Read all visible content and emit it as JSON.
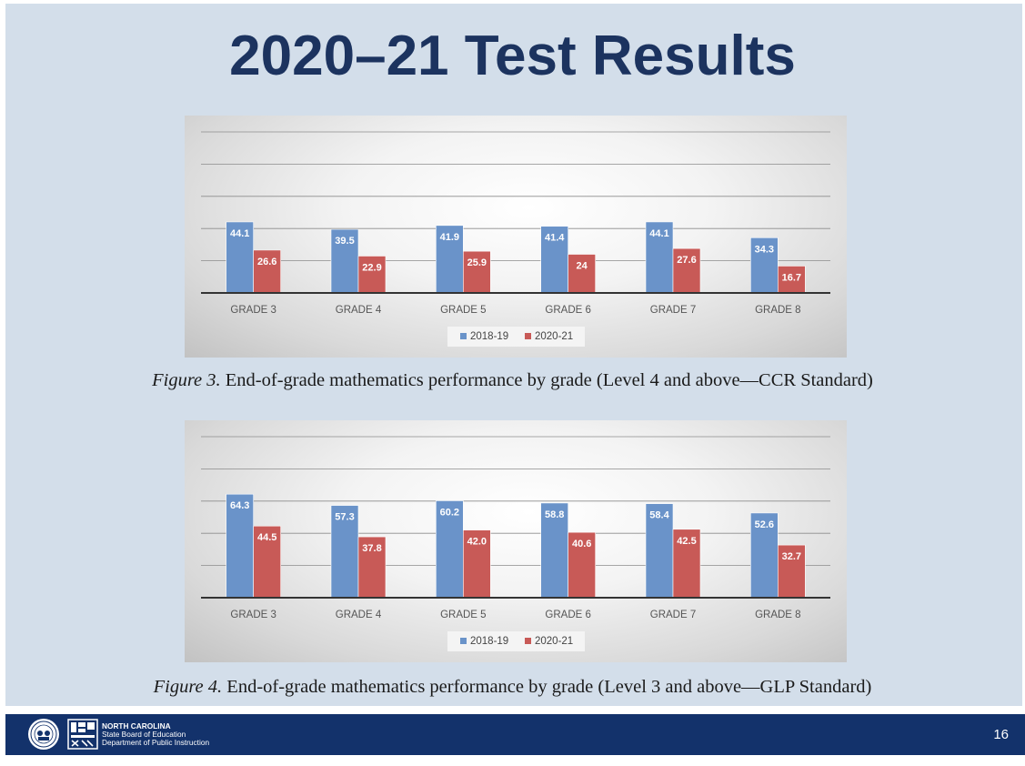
{
  "slide": {
    "title": "2020–21 Test Results",
    "page_number": "16"
  },
  "footer": {
    "org_line1": "NORTH CAROLINA",
    "org_line2": "State Board of Education",
    "org_line3": "Department of Public Instruction"
  },
  "captions": [
    {
      "figure_label": "Figure 3.",
      "text": " End-of-grade mathematics performance by grade (Level 4 and above—CCR Standard)"
    },
    {
      "figure_label": "Figure 4.",
      "text": " End-of-grade mathematics performance by grade (Level 3 and above—GLP Standard)"
    }
  ],
  "colors": {
    "series_2018": "#6a93c9",
    "series_2021": "#c85a57",
    "title": "#1c335f",
    "footer": "#13326b"
  },
  "chart_data": [
    {
      "type": "bar",
      "categories": [
        "GRADE 3",
        "GRADE 4",
        "GRADE 5",
        "GRADE 6",
        "GRADE 7",
        "GRADE 8"
      ],
      "series": [
        {
          "name": "2018-19",
          "values": [
            44.1,
            39.5,
            41.9,
            41.4,
            44.1,
            34.3
          ],
          "labels": [
            "44.1",
            "39.5",
            "41.9",
            "41.4",
            "44.1",
            "34.3"
          ]
        },
        {
          "name": "2020-21",
          "values": [
            26.6,
            22.9,
            25.9,
            24,
            27.6,
            16.7
          ],
          "labels": [
            "26.6",
            "22.9",
            "25.9",
            "24",
            "27.6",
            "16.7"
          ]
        }
      ],
      "ylim": [
        0,
        100
      ],
      "grid": true,
      "legend": "bottom"
    },
    {
      "type": "bar",
      "categories": [
        "GRADE 3",
        "GRADE 4",
        "GRADE 5",
        "GRADE 6",
        "GRADE 7",
        "GRADE 8"
      ],
      "series": [
        {
          "name": "2018-19",
          "values": [
            64.3,
            57.3,
            60.2,
            58.8,
            58.4,
            52.6
          ],
          "labels": [
            "64.3",
            "57.3",
            "60.2",
            "58.8",
            "58.4",
            "52.6"
          ]
        },
        {
          "name": "2020-21",
          "values": [
            44.5,
            37.8,
            42.0,
            40.6,
            42.5,
            32.7
          ],
          "labels": [
            "44.5",
            "37.8",
            "42.0",
            "40.6",
            "42.5",
            "32.7"
          ]
        }
      ],
      "ylim": [
        0,
        100
      ],
      "grid": true,
      "legend": "bottom"
    }
  ]
}
